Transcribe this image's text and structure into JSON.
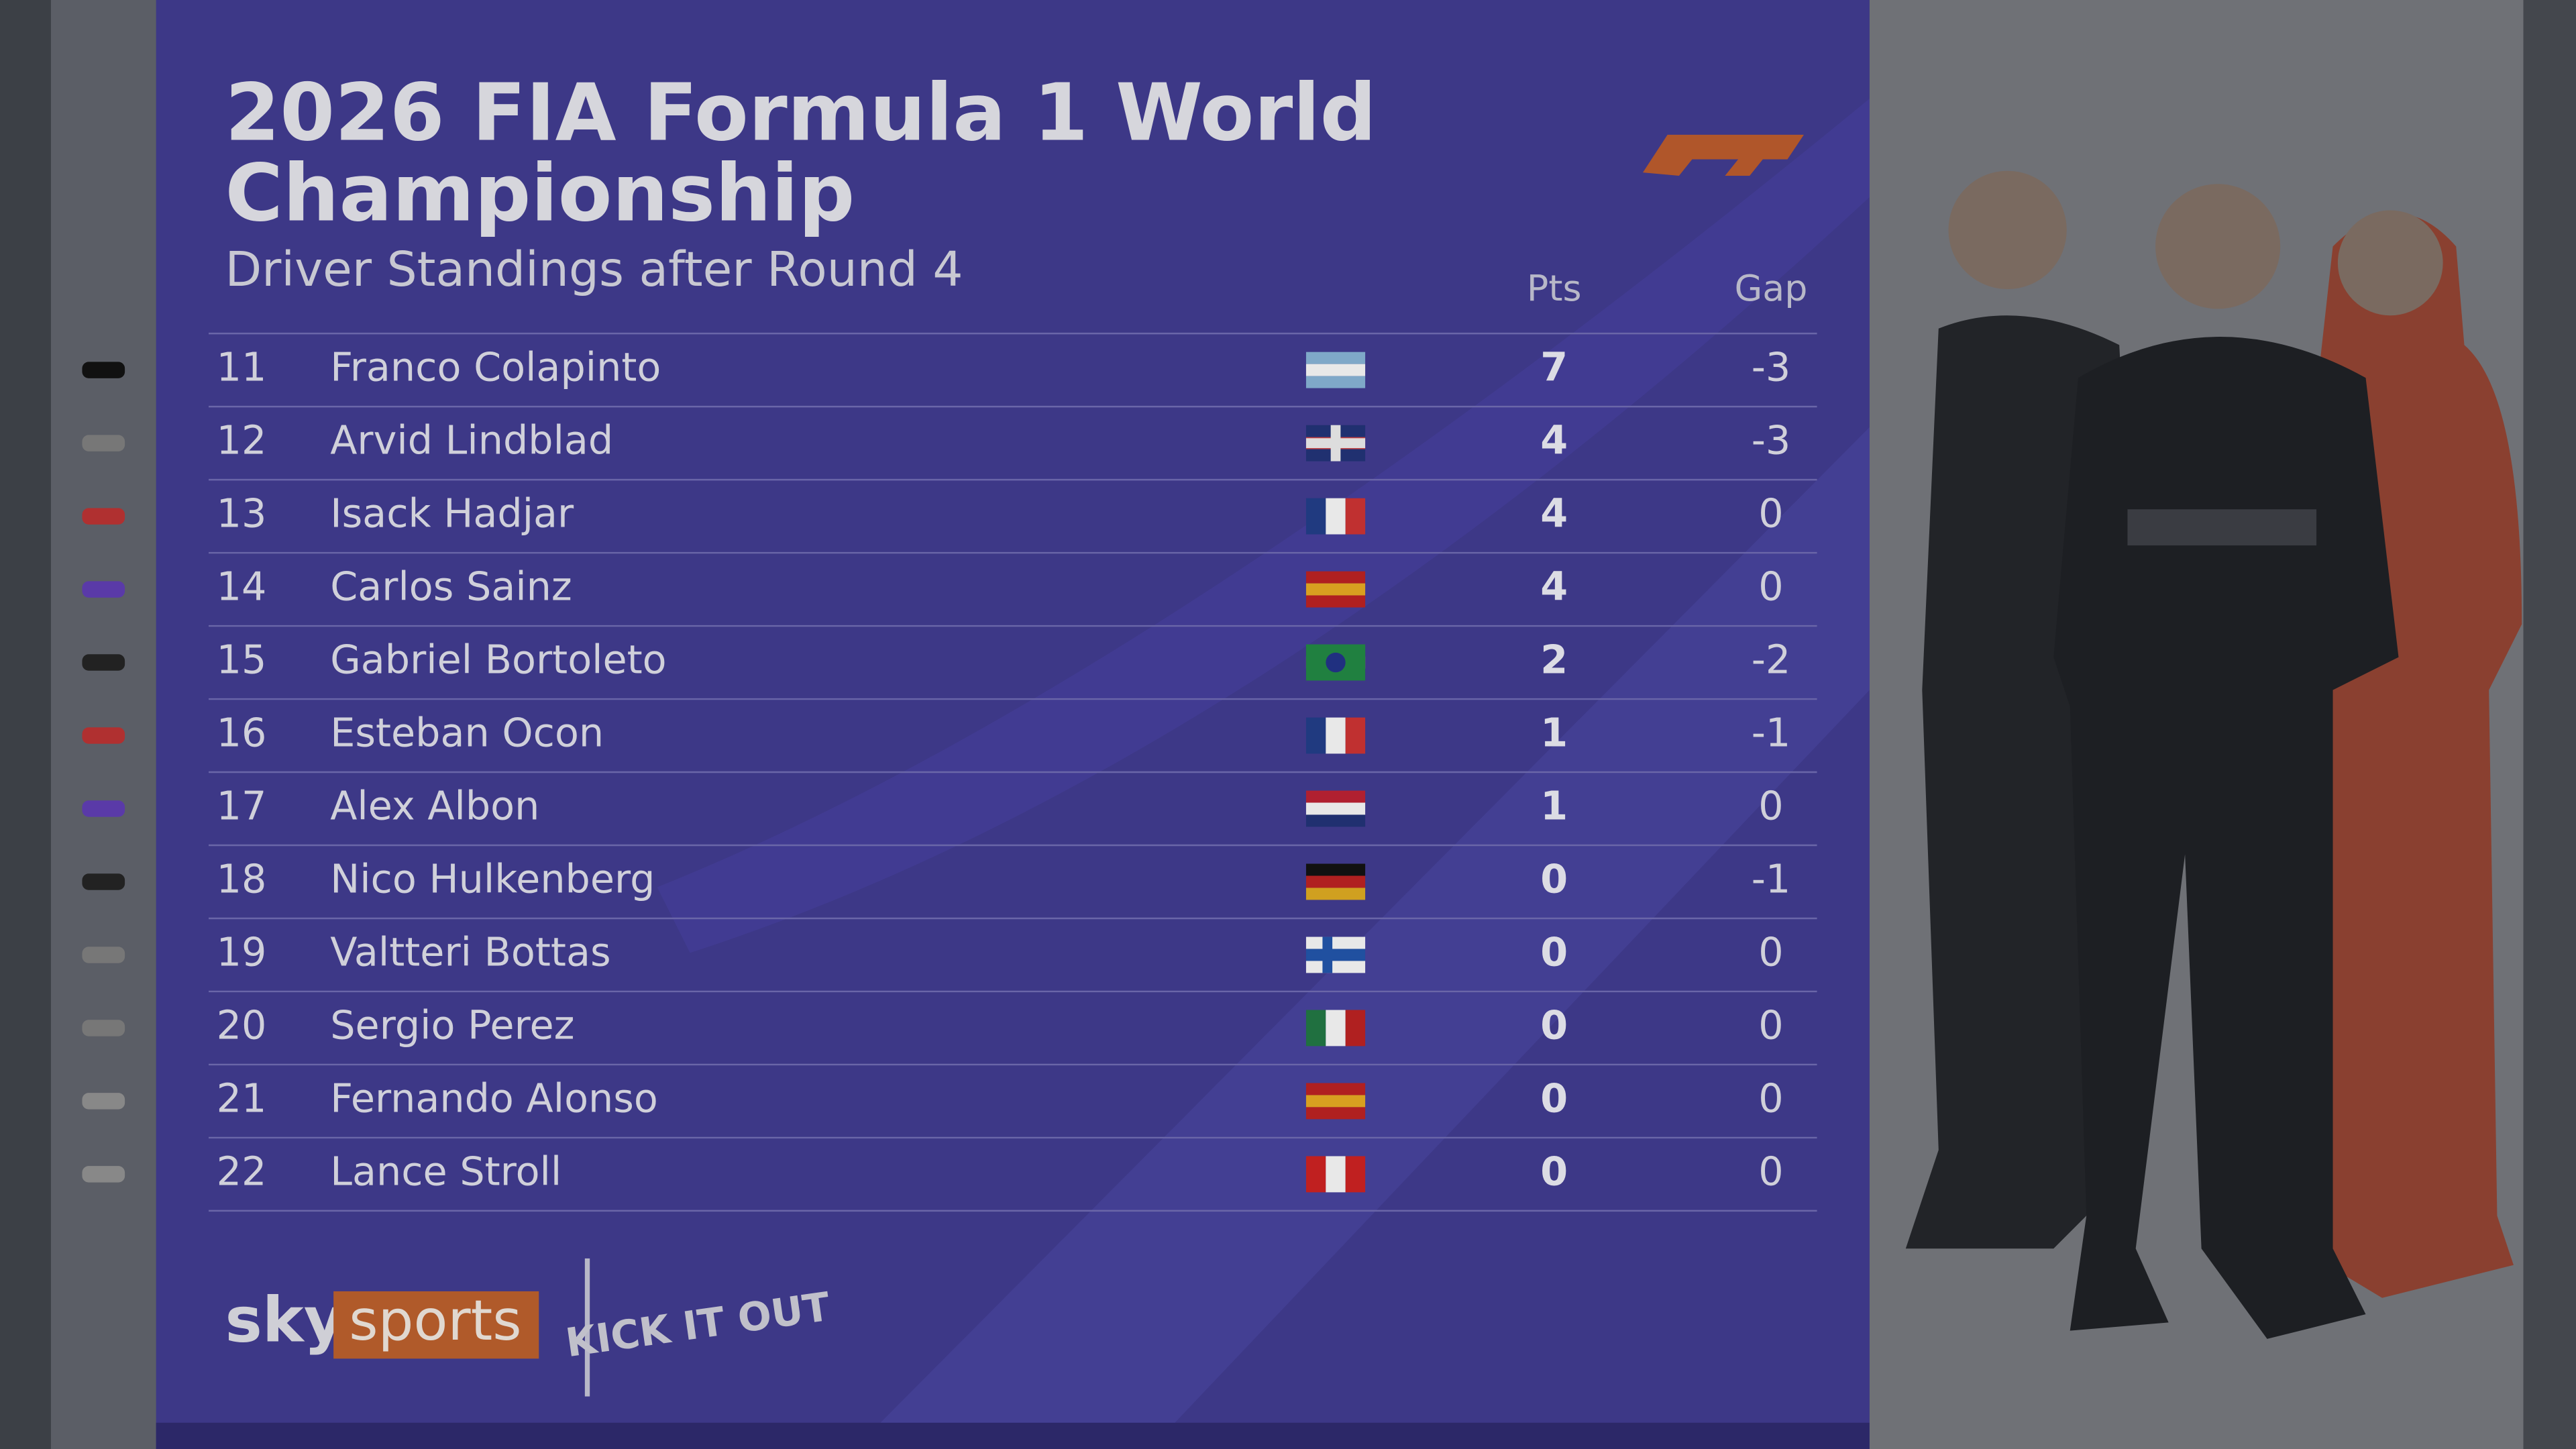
{
  "header": {
    "title_lines": [
      "2026 FIA Formula 1 World",
      "Championship"
    ],
    "subtitle": "Driver Standings after Round 4"
  },
  "table": {
    "columns": {
      "pts": "Pts",
      "gap": "Gap"
    },
    "rows": [
      {
        "position": 11,
        "driver": "Franco Colapinto",
        "pts": 7,
        "gap": -3
      },
      {
        "position": 12,
        "driver": "Arvid Lindblad",
        "pts": 4,
        "gap": -3
      },
      {
        "position": 13,
        "driver": "Isack Hadjar",
        "pts": 4,
        "gap": 0
      },
      {
        "position": 14,
        "driver": "Carlos Sainz",
        "pts": 4,
        "gap": 0
      },
      {
        "position": 15,
        "driver": "Gabriel Bortoleto",
        "pts": 2,
        "gap": -2
      },
      {
        "position": 16,
        "driver": "Esteban Ocon",
        "pts": 1,
        "gap": -1
      },
      {
        "position": 17,
        "driver": "Alex Albon",
        "pts": 1,
        "gap": 0
      },
      {
        "position": 18,
        "driver": "Nico Hulkenberg",
        "pts": 0,
        "gap": -1
      },
      {
        "position": 19,
        "driver": "Valtteri Bottas",
        "pts": 0,
        "gap": 0
      },
      {
        "position": 20,
        "driver": "Sergio Perez",
        "pts": 0,
        "gap": 0
      },
      {
        "position": 21,
        "driver": "Fernando Alonso",
        "pts": 0,
        "gap": 0
      },
      {
        "position": 22,
        "driver": "Lance Stroll",
        "pts": 0,
        "gap": 0
      }
    ]
  },
  "branding": {
    "sky": "sky",
    "sports": "sports",
    "kick": "KICK IT OUT"
  }
}
